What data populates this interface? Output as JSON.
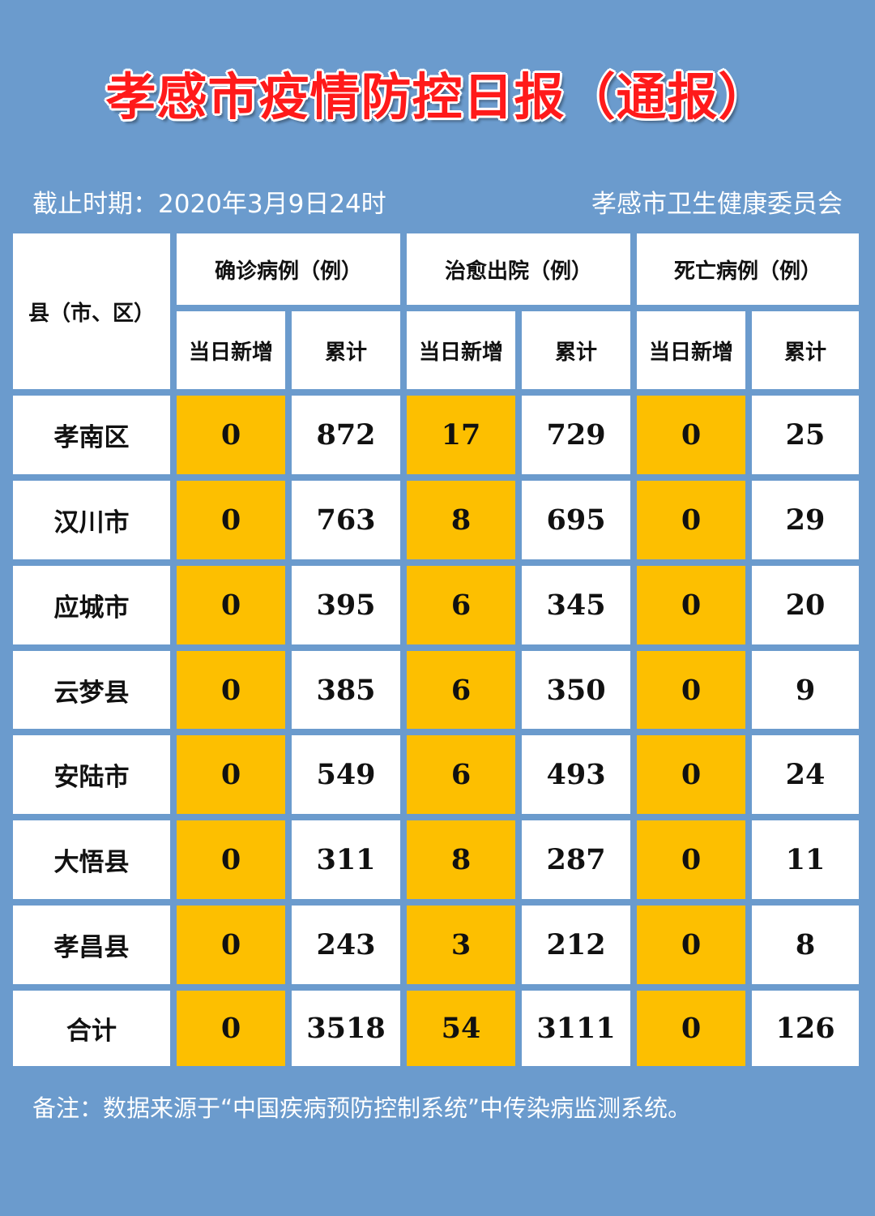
{
  "header": {
    "title": "孝感市疫情防控日报（通报）",
    "cutoff": "截止时期：2020年3月9日24时",
    "publisher": "孝感市卫生健康委员会"
  },
  "table": {
    "region_header": "县（市、区）",
    "groups": [
      "确诊病例（例）",
      "治愈出院（例）",
      "死亡病例（例）"
    ],
    "sub_headers": [
      "当日新增",
      "累计",
      "当日新增",
      "累计",
      "当日新增",
      "累计"
    ],
    "rows": [
      {
        "region": "孝南区",
        "values": [
          "0",
          "872",
          "17",
          "729",
          "0",
          "25"
        ]
      },
      {
        "region": "汉川市",
        "values": [
          "0",
          "763",
          "8",
          "695",
          "0",
          "29"
        ]
      },
      {
        "region": "应城市",
        "values": [
          "0",
          "395",
          "6",
          "345",
          "0",
          "20"
        ]
      },
      {
        "region": "云梦县",
        "values": [
          "0",
          "385",
          "6",
          "350",
          "0",
          "9"
        ]
      },
      {
        "region": "安陆市",
        "values": [
          "0",
          "549",
          "6",
          "493",
          "0",
          "24"
        ]
      },
      {
        "region": "大悟县",
        "values": [
          "0",
          "311",
          "8",
          "287",
          "0",
          "11"
        ]
      },
      {
        "region": "孝昌县",
        "values": [
          "0",
          "243",
          "3",
          "212",
          "0",
          "8"
        ]
      },
      {
        "region": "合计",
        "values": [
          "0",
          "3518",
          "54",
          "3111",
          "0",
          "126"
        ]
      }
    ]
  },
  "footer": {
    "note": "备注：数据来源于“中国疾病预防控制系统”中传染病监测系统。"
  },
  "colors": {
    "background": "#6b9bcd",
    "title": "#ff1a1a",
    "highlight": "#fdbf00",
    "cell": "#ffffff"
  }
}
